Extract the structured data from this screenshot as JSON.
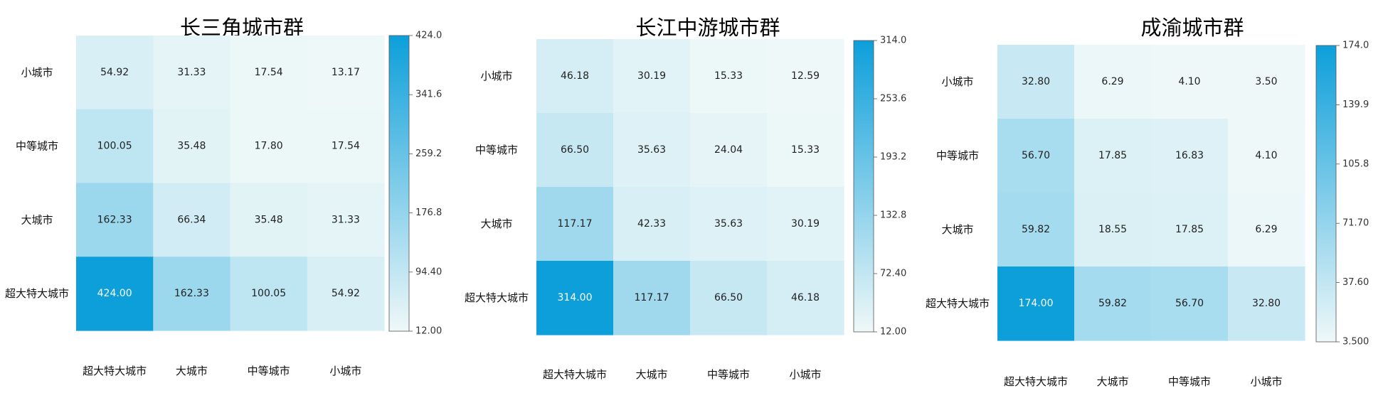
{
  "colors": {
    "low": "#eff8f8",
    "high": "#0c9fda",
    "text_dark": "#222222",
    "text_light": "#ffffff"
  },
  "chart_data": [
    {
      "type": "heatmap",
      "title": "长三角城市群",
      "rows": [
        "小城市",
        "中等城市",
        "大城市",
        "超大特大城市"
      ],
      "cols": [
        "超大特大城市",
        "大城市",
        "中等城市",
        "小城市"
      ],
      "values": [
        [
          54.92,
          31.33,
          17.54,
          13.17
        ],
        [
          100.05,
          35.48,
          17.8,
          17.54
        ],
        [
          162.33,
          66.34,
          35.48,
          31.33
        ],
        [
          424.0,
          162.33,
          100.05,
          54.92
        ]
      ],
      "labels": [
        [
          "54.92",
          "31.33",
          "17.54",
          "13.17"
        ],
        [
          "100.05",
          "35.48",
          "17.80",
          "17.54"
        ],
        [
          "162.33",
          "66.34",
          "35.48",
          "31.33"
        ],
        [
          "424.00",
          "162.33",
          "100.05",
          "54.92"
        ]
      ],
      "colorbar_range": [
        12.0,
        424.0
      ],
      "colorbar_ticks": [
        "424.0",
        "341.6",
        "259.2",
        "176.8",
        "94.40",
        "12.00"
      ]
    },
    {
      "type": "heatmap",
      "title": "长江中游城市群",
      "rows": [
        "小城市",
        "中等城市",
        "大城市",
        "超大特大城市"
      ],
      "cols": [
        "超大特大城市",
        "大城市",
        "中等城市",
        "小城市"
      ],
      "values": [
        [
          46.18,
          30.19,
          15.33,
          12.59
        ],
        [
          66.5,
          35.63,
          24.04,
          15.33
        ],
        [
          117.17,
          42.33,
          35.63,
          30.19
        ],
        [
          314.0,
          117.17,
          66.5,
          46.18
        ]
      ],
      "labels": [
        [
          "46.18",
          "30.19",
          "15.33",
          "12.59"
        ],
        [
          "66.50",
          "35.63",
          "24.04",
          "15.33"
        ],
        [
          "117.17",
          "42.33",
          "35.63",
          "30.19"
        ],
        [
          "314.00",
          "117.17",
          "66.50",
          "46.18"
        ]
      ],
      "colorbar_range": [
        12.0,
        314.0
      ],
      "colorbar_ticks": [
        "314.0",
        "253.6",
        "193.2",
        "132.8",
        "72.40",
        "12.00"
      ]
    },
    {
      "type": "heatmap",
      "title": "成渝城市群",
      "rows": [
        "小城市",
        "中等城市",
        "大城市",
        "超大特大城市"
      ],
      "cols": [
        "超大特大城市",
        "大城市",
        "中等城市",
        "小城市"
      ],
      "values": [
        [
          32.8,
          6.29,
          4.1,
          3.5
        ],
        [
          56.7,
          17.85,
          16.83,
          4.1
        ],
        [
          59.82,
          18.55,
          17.85,
          6.29
        ],
        [
          174.0,
          59.82,
          56.7,
          32.8
        ]
      ],
      "labels": [
        [
          "32.80",
          "6.29",
          "4.10",
          "3.50"
        ],
        [
          "56.70",
          "17.85",
          "16.83",
          "4.10"
        ],
        [
          "59.82",
          "18.55",
          "17.85",
          "6.29"
        ],
        [
          "174.00",
          "59.82",
          "56.70",
          "32.80"
        ]
      ],
      "colorbar_range": [
        3.5,
        174.0
      ],
      "colorbar_ticks": [
        "174.0",
        "139.9",
        "105.8",
        "71.70",
        "37.60",
        "3.500"
      ]
    }
  ]
}
